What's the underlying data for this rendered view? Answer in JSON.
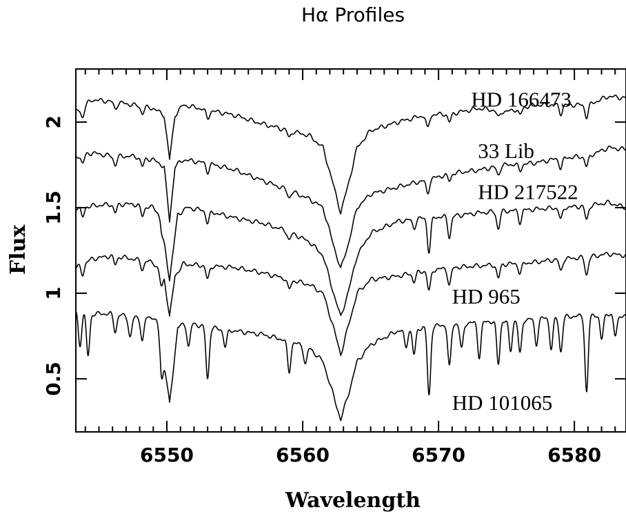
{
  "chart_data": {
    "type": "line",
    "title": "Hα Profiles",
    "xlabel": "Wavelength",
    "ylabel": "Flux",
    "xlim": [
      6543.3,
      6583.8
    ],
    "ylim": [
      0.19,
      2.31
    ],
    "xticks": [
      6550,
      6560,
      6570,
      6580
    ],
    "xtick_labels": [
      "6550",
      "6560",
      "6570",
      "6580"
    ],
    "yticks": [
      0.5,
      1,
      1.5,
      2
    ],
    "ytick_labels": [
      "0.5",
      "1",
      "1.5",
      "2"
    ],
    "grid": false,
    "series": [
      {
        "name": "HD 166473",
        "label_pos": [
          6572.4,
          2.13
        ],
        "points": [
          [
            6543.3,
            2.06
          ],
          [
            6544.5,
            2.13
          ],
          [
            6546,
            2.12
          ],
          [
            6547.5,
            2.1
          ],
          [
            6549,
            2.08
          ],
          [
            6549.8,
            2.04
          ],
          [
            6550.2,
            1.78
          ],
          [
            6550.6,
            2.04
          ],
          [
            6551.2,
            2.1
          ],
          [
            6553,
            2.07
          ],
          [
            6555,
            2.04
          ],
          [
            6557,
            1.99
          ],
          [
            6559,
            1.95
          ],
          [
            6560.5,
            1.92
          ],
          [
            6561.5,
            1.85
          ],
          [
            6562.2,
            1.65
          ],
          [
            6562.8,
            1.47
          ],
          [
            6563.4,
            1.65
          ],
          [
            6564,
            1.85
          ],
          [
            6565,
            1.95
          ],
          [
            6567,
            2.0
          ],
          [
            6569,
            2.04
          ],
          [
            6571,
            2.05
          ],
          [
            6573,
            2.08
          ],
          [
            6575,
            2.06
          ],
          [
            6577,
            2.1
          ],
          [
            6579,
            2.1
          ],
          [
            6581,
            2.1
          ],
          [
            6582.5,
            2.15
          ],
          [
            6583.8,
            2.14
          ]
        ],
        "dips": [
          [
            6543.8,
            0.06
          ],
          [
            6546.2,
            0.04
          ],
          [
            6548.2,
            0.04
          ],
          [
            6553.0,
            0.05
          ],
          [
            6559.0,
            0.04
          ],
          [
            6569.2,
            0.08
          ],
          [
            6570.8,
            0.05
          ],
          [
            6574.4,
            0.04
          ],
          [
            6576.0,
            0.04
          ],
          [
            6579.0,
            0.05
          ],
          [
            6580.9,
            0.07
          ]
        ]
      },
      {
        "name": "33 Lib",
        "label_pos": [
          6572.9,
          1.83
        ],
        "points": [
          [
            6543.3,
            1.8
          ],
          [
            6544.5,
            1.82
          ],
          [
            6546,
            1.8
          ],
          [
            6547.5,
            1.8
          ],
          [
            6549,
            1.78
          ],
          [
            6549.8,
            1.74
          ],
          [
            6550.2,
            1.42
          ],
          [
            6550.6,
            1.74
          ],
          [
            6551.2,
            1.78
          ],
          [
            6553,
            1.76
          ],
          [
            6555,
            1.72
          ],
          [
            6557,
            1.66
          ],
          [
            6559,
            1.6
          ],
          [
            6560.5,
            1.55
          ],
          [
            6561.5,
            1.5
          ],
          [
            6562.2,
            1.3
          ],
          [
            6562.8,
            1.14
          ],
          [
            6563.4,
            1.3
          ],
          [
            6564,
            1.5
          ],
          [
            6565,
            1.58
          ],
          [
            6567,
            1.62
          ],
          [
            6569,
            1.66
          ],
          [
            6571,
            1.7
          ],
          [
            6573,
            1.72
          ],
          [
            6575,
            1.75
          ],
          [
            6577,
            1.76
          ],
          [
            6579,
            1.79
          ],
          [
            6581,
            1.8
          ],
          [
            6582.5,
            1.85
          ],
          [
            6583.8,
            1.84
          ]
        ],
        "dips": [
          [
            6543.8,
            0.05
          ],
          [
            6546.2,
            0.05
          ],
          [
            6548.2,
            0.05
          ],
          [
            6553.0,
            0.05
          ],
          [
            6559.0,
            0.04
          ],
          [
            6569.2,
            0.08
          ],
          [
            6570.8,
            0.04
          ],
          [
            6574.4,
            0.05
          ],
          [
            6576.0,
            0.04
          ],
          [
            6579.0,
            0.06
          ],
          [
            6580.9,
            0.06
          ]
        ]
      },
      {
        "name": "HD 217522",
        "label_pos": [
          6572.9,
          1.59
        ],
        "points": [
          [
            6543.3,
            1.5
          ],
          [
            6544.5,
            1.51
          ],
          [
            6546,
            1.52
          ],
          [
            6547.5,
            1.52
          ],
          [
            6549,
            1.5
          ],
          [
            6549.5,
            1.46
          ],
          [
            6550.2,
            1.08
          ],
          [
            6550.8,
            1.46
          ],
          [
            6551.5,
            1.5
          ],
          [
            6553,
            1.48
          ],
          [
            6555,
            1.44
          ],
          [
            6557,
            1.41
          ],
          [
            6559,
            1.36
          ],
          [
            6560.5,
            1.3
          ],
          [
            6561.5,
            1.22
          ],
          [
            6562.2,
            1.02
          ],
          [
            6562.8,
            0.86
          ],
          [
            6563.4,
            1.02
          ],
          [
            6564,
            1.22
          ],
          [
            6565,
            1.35
          ],
          [
            6567,
            1.42
          ],
          [
            6569,
            1.44
          ],
          [
            6571,
            1.45
          ],
          [
            6573,
            1.47
          ],
          [
            6575,
            1.48
          ],
          [
            6577,
            1.49
          ],
          [
            6579,
            1.5
          ],
          [
            6581,
            1.51
          ],
          [
            6582.5,
            1.53
          ],
          [
            6583.8,
            1.5
          ]
        ],
        "dips": [
          [
            6543.8,
            0.06
          ],
          [
            6546.2,
            0.05
          ],
          [
            6548.2,
            0.06
          ],
          [
            6549.6,
            0.05
          ],
          [
            6553.0,
            0.07
          ],
          [
            6559.0,
            0.05
          ],
          [
            6568.2,
            0.05
          ],
          [
            6569.3,
            0.2
          ],
          [
            6570.8,
            0.12
          ],
          [
            6574.4,
            0.1
          ],
          [
            6576.0,
            0.07
          ],
          [
            6579.0,
            0.07
          ],
          [
            6580.9,
            0.08
          ]
        ]
      },
      {
        "name": "HD 965",
        "label_pos": [
          6571.0,
          0.98
        ],
        "points": [
          [
            6543.3,
            1.15
          ],
          [
            6544.5,
            1.2
          ],
          [
            6546,
            1.22
          ],
          [
            6547.5,
            1.2
          ],
          [
            6549,
            1.18
          ],
          [
            6549.8,
            1.1
          ],
          [
            6550.2,
            0.86
          ],
          [
            6550.6,
            1.1
          ],
          [
            6551.2,
            1.17
          ],
          [
            6553,
            1.16
          ],
          [
            6555,
            1.15
          ],
          [
            6557,
            1.12
          ],
          [
            6559,
            1.08
          ],
          [
            6560.5,
            1.05
          ],
          [
            6561.5,
            1.0
          ],
          [
            6562.2,
            0.82
          ],
          [
            6562.8,
            0.64
          ],
          [
            6563.4,
            0.82
          ],
          [
            6564,
            1.0
          ],
          [
            6565,
            1.08
          ],
          [
            6567,
            1.1
          ],
          [
            6569,
            1.13
          ],
          [
            6571,
            1.15
          ],
          [
            6573,
            1.16
          ],
          [
            6575,
            1.17
          ],
          [
            6577,
            1.18
          ],
          [
            6579,
            1.2
          ],
          [
            6581,
            1.21
          ],
          [
            6582.5,
            1.23
          ],
          [
            6583.8,
            1.22
          ]
        ],
        "dips": [
          [
            6543.8,
            0.06
          ],
          [
            6546.2,
            0.05
          ],
          [
            6548.2,
            0.05
          ],
          [
            6549.6,
            0.08
          ],
          [
            6553.0,
            0.08
          ],
          [
            6559.0,
            0.06
          ],
          [
            6568.2,
            0.05
          ],
          [
            6569.3,
            0.12
          ],
          [
            6570.8,
            0.1
          ],
          [
            6574.4,
            0.08
          ],
          [
            6576.0,
            0.06
          ],
          [
            6579.0,
            0.07
          ],
          [
            6580.9,
            0.1
          ]
        ]
      },
      {
        "name": "HD 101065",
        "label_pos": [
          6571.0,
          0.36
        ],
        "points": [
          [
            6543.3,
            0.9
          ],
          [
            6544.5,
            0.88
          ],
          [
            6546,
            0.88
          ],
          [
            6547.5,
            0.86
          ],
          [
            6549,
            0.86
          ],
          [
            6549.5,
            0.8
          ],
          [
            6550.2,
            0.35
          ],
          [
            6550.8,
            0.8
          ],
          [
            6551.5,
            0.83
          ],
          [
            6553,
            0.8
          ],
          [
            6555,
            0.78
          ],
          [
            6557,
            0.76
          ],
          [
            6559,
            0.72
          ],
          [
            6560.5,
            0.68
          ],
          [
            6561.5,
            0.6
          ],
          [
            6562.2,
            0.42
          ],
          [
            6562.8,
            0.26
          ],
          [
            6563.4,
            0.42
          ],
          [
            6564,
            0.6
          ],
          [
            6565,
            0.7
          ],
          [
            6567,
            0.78
          ],
          [
            6569,
            0.8
          ],
          [
            6571,
            0.82
          ],
          [
            6573,
            0.83
          ],
          [
            6575,
            0.84
          ],
          [
            6577,
            0.85
          ],
          [
            6579,
            0.86
          ],
          [
            6581,
            0.87
          ],
          [
            6582.5,
            0.88
          ],
          [
            6583.8,
            0.86
          ]
        ],
        "dips": [
          [
            6543.6,
            0.2
          ],
          [
            6544.2,
            0.25
          ],
          [
            6546.2,
            0.1
          ],
          [
            6547.3,
            0.12
          ],
          [
            6548.2,
            0.14
          ],
          [
            6549.6,
            0.22
          ],
          [
            6551.6,
            0.14
          ],
          [
            6553.0,
            0.3
          ],
          [
            6554.3,
            0.1
          ],
          [
            6559.0,
            0.18
          ],
          [
            6560.2,
            0.1
          ],
          [
            6567.6,
            0.1
          ],
          [
            6568.2,
            0.15
          ],
          [
            6569.3,
            0.4
          ],
          [
            6570.8,
            0.25
          ],
          [
            6571.7,
            0.15
          ],
          [
            6573.0,
            0.2
          ],
          [
            6574.4,
            0.25
          ],
          [
            6575.3,
            0.18
          ],
          [
            6576.0,
            0.2
          ],
          [
            6577.2,
            0.15
          ],
          [
            6578.3,
            0.18
          ],
          [
            6579.0,
            0.2
          ],
          [
            6580.9,
            0.45
          ],
          [
            6582.0,
            0.15
          ],
          [
            6583.0,
            0.12
          ]
        ]
      }
    ]
  }
}
